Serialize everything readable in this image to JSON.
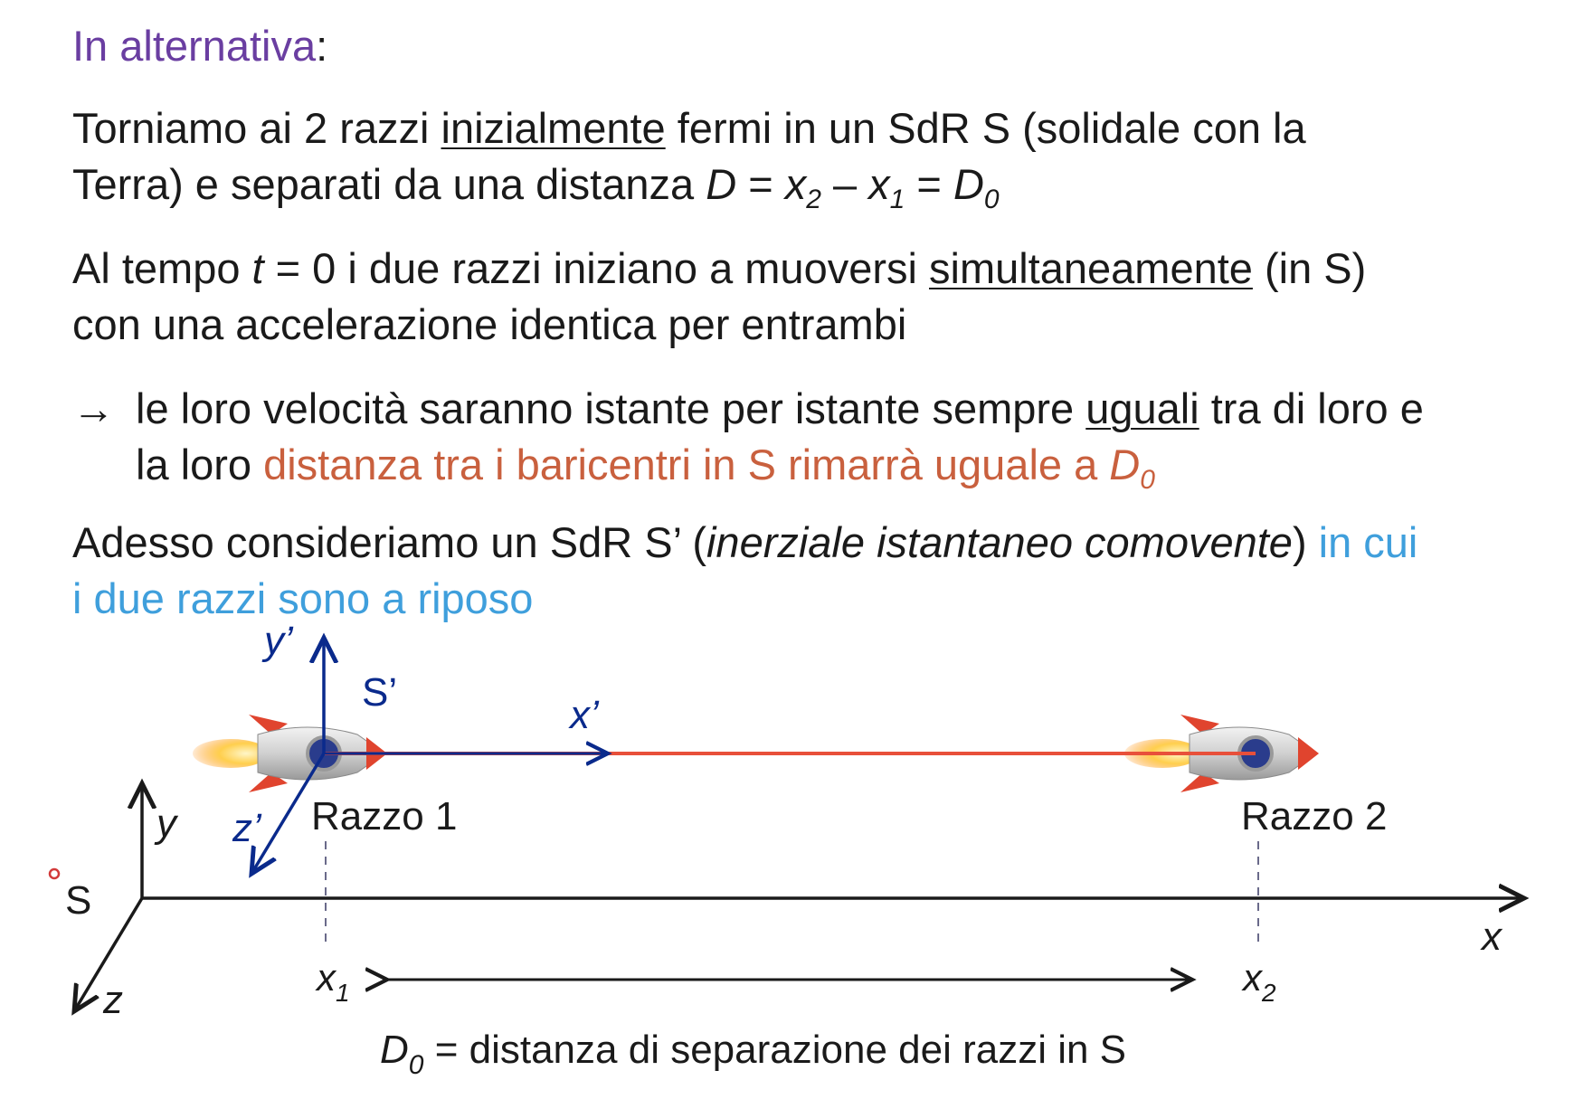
{
  "header": {
    "heading": "In alternativa",
    "colon": ":"
  },
  "paragraph1": {
    "a": "Torniamo ai 2 razzi ",
    "underlined": "inizialmente",
    "b": " fermi in un SdR S (solidale con la",
    "c": "Terra) e separati da una distanza ",
    "D": "D",
    "eq1": " = ",
    "x2": "x",
    "sub2": "2",
    "minus": " – ",
    "x1": "x",
    "sub1": "1",
    "eq2": " = ",
    "D0": "D",
    "sub0": "0"
  },
  "paragraph2": {
    "a": "Al tempo ",
    "t": "t",
    "b": " = 0 i due razzi iniziano a muoversi ",
    "underlined": "simultaneamente",
    "c": " (in S)",
    "d": "con una accelerazione identica per entrambi"
  },
  "paragraph3": {
    "arrow": "→",
    "a": "le loro velocità saranno istante per istante sempre ",
    "underlined": "uguali",
    "b": " tra di loro e",
    "c": "la loro ",
    "highlight": "distanza tra i baricentri in S rimarrà uguale a ",
    "D0": "D",
    "sub0": "0"
  },
  "paragraph4": {
    "a": "Adesso consideriamo un SdR S’ (",
    "italic": "inerziale istantaneo comovente",
    "b": ") ",
    "highlight1": "in cui",
    "highlight2": "i due razzi sono a riposo"
  },
  "figure": {
    "frame_S_label": "S",
    "frame_S_prime_label": "S’",
    "axis_x": "x",
    "axis_y": "y",
    "axis_z": "z",
    "axis_x_prime": "x’",
    "axis_y_prime": "y’",
    "axis_z_prime": "z’",
    "rocket1_label": "Razzo 1",
    "rocket2_label": "Razzo 2",
    "x1_label": "x",
    "x1_sub": "1",
    "x2_label": "x",
    "x2_sub": "2",
    "caption_D": "D",
    "caption_sub": "0",
    "caption_text": " = distanza di separazione dei razzi in S"
  },
  "colors": {
    "heading": "#6a3ea1",
    "highlight_orange": "#c9603e",
    "highlight_blue": "#3f9fdc",
    "axis_prime": "#0a2a8c",
    "separation_line": "#e8503a"
  }
}
